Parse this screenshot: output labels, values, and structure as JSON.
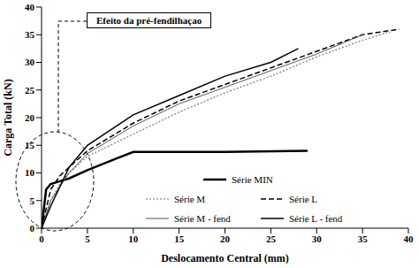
{
  "chart_data": {
    "type": "line",
    "x_label": "Deslocamento Central (mm)",
    "y_label": "Carga Total (kN)",
    "annotations": [
      "Efeito da pré-fendilhaçao"
    ],
    "xlim": [
      0,
      40
    ],
    "xticks": [
      0,
      5,
      10,
      15,
      20,
      25,
      30,
      35,
      40
    ],
    "ylim": [
      0,
      40
    ],
    "yticks": [
      0,
      5,
      10,
      15,
      20,
      25,
      30,
      35,
      40
    ],
    "grid": false,
    "legend": "lower right",
    "series": [
      {
        "name": "Série MIN",
        "color": "#000000",
        "line_style": "solid",
        "x": [
          0,
          0.5,
          1,
          2,
          3,
          5,
          8,
          10,
          15,
          20,
          29
        ],
        "values": [
          0,
          7,
          8,
          8.5,
          9,
          10.5,
          12.5,
          13.8,
          13.8,
          13.8,
          14
        ]
      },
      {
        "name": "Série M",
        "color": "#777777",
        "line_style": "dotted",
        "x": [
          0,
          1,
          2,
          3,
          5,
          10,
          15,
          20,
          25,
          30,
          35,
          38
        ],
        "values": [
          0,
          5,
          8,
          10,
          13,
          17,
          21,
          24.5,
          27.5,
          31,
          34,
          35.5
        ]
      },
      {
        "name": "Série L",
        "color": "#000000",
        "line_style": "dashed",
        "x": [
          0,
          1,
          2,
          3,
          5,
          10,
          15,
          20,
          25,
          30,
          35,
          39
        ],
        "values": [
          0,
          7,
          9.5,
          11,
          14,
          19,
          23,
          26,
          29,
          32,
          35,
          36
        ]
      },
      {
        "name": "Série M - fend",
        "color": "#555555",
        "line_style": "solid",
        "x": [
          0,
          1,
          3,
          5,
          10,
          15,
          20,
          25,
          30,
          35
        ],
        "values": [
          0,
          5,
          10,
          13.5,
          18.5,
          22.5,
          25.5,
          28.5,
          31.5,
          35
        ]
      },
      {
        "name": "Série L - fend",
        "color": "#000000",
        "line_style": "solid",
        "x": [
          0,
          1,
          3,
          5,
          10,
          15,
          20,
          25,
          28
        ],
        "values": [
          0,
          4,
          11,
          15,
          20.5,
          24,
          27.5,
          30,
          32.5
        ]
      }
    ]
  }
}
